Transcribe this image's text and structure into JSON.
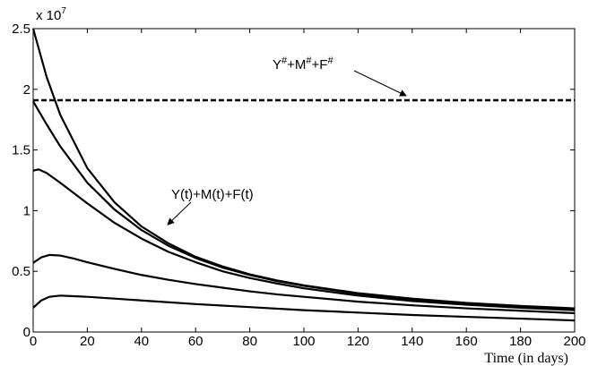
{
  "chart_data": {
    "type": "line",
    "title": "",
    "xlabel": "Time (in days)",
    "ylabel": "",
    "xlim": [
      0,
      200
    ],
    "ylim": [
      0,
      25000000
    ],
    "y_multiplier_label": "x 10",
    "y_multiplier_exponent": "7",
    "grid": false,
    "xticks": [
      0,
      20,
      40,
      60,
      80,
      100,
      120,
      140,
      160,
      180,
      200
    ],
    "xtick_labels": [
      "0",
      "20",
      "40",
      "60",
      "80",
      "100",
      "120",
      "140",
      "160",
      "180",
      "200"
    ],
    "yticks": [
      0,
      5000000,
      10000000,
      15000000,
      20000000,
      25000000
    ],
    "ytick_labels": [
      "0",
      "0.5",
      "1",
      "1.5",
      "2",
      "2.5"
    ],
    "equilibrium": {
      "value": 19100000,
      "style": "dashed",
      "label_parts": [
        "Y",
        "#",
        "+M",
        "#",
        "+F",
        "#"
      ]
    },
    "trajectories_label": "Y(t)+M(t)+F(t)",
    "series": [
      {
        "x": [
          0,
          5,
          10,
          20,
          30,
          40,
          50,
          60,
          70,
          80,
          90,
          100,
          120,
          140,
          160,
          180,
          200
        ],
        "values": [
          25000000,
          21000000,
          17900000,
          13500000,
          10700000,
          8700000,
          7300000,
          6200000,
          5400000,
          4750000,
          4250000,
          3850000,
          3200000,
          2750000,
          2400000,
          2150000,
          1950000
        ]
      },
      {
        "x": [
          0,
          5,
          10,
          20,
          30,
          40,
          50,
          60,
          70,
          80,
          90,
          100,
          120,
          140,
          160,
          180,
          200
        ],
        "values": [
          19000000,
          17100000,
          15300000,
          12300000,
          10100000,
          8400000,
          7100000,
          6100000,
          5300000,
          4700000,
          4200000,
          3800000,
          3150000,
          2700000,
          2350000,
          2100000,
          1900000
        ]
      },
      {
        "x": [
          0,
          2,
          5,
          10,
          20,
          30,
          40,
          50,
          60,
          70,
          80,
          90,
          100,
          120,
          140,
          160,
          180,
          200
        ],
        "values": [
          13300000,
          13400000,
          13100000,
          12300000,
          10600000,
          9000000,
          7700000,
          6600000,
          5750000,
          5000000,
          4450000,
          4000000,
          3600000,
          3000000,
          2550000,
          2250000,
          2000000,
          1800000
        ]
      },
      {
        "x": [
          0,
          3,
          6,
          10,
          15,
          20,
          30,
          40,
          50,
          60,
          70,
          80,
          90,
          100,
          120,
          140,
          160,
          180,
          200
        ],
        "values": [
          5700000,
          6150000,
          6350000,
          6300000,
          6050000,
          5750000,
          5200000,
          4700000,
          4300000,
          3950000,
          3650000,
          3350000,
          3100000,
          2900000,
          2500000,
          2200000,
          1950000,
          1750000,
          1550000
        ]
      },
      {
        "x": [
          0,
          3,
          6,
          10,
          15,
          20,
          30,
          40,
          60,
          80,
          100,
          120,
          140,
          160,
          180,
          200
        ],
        "values": [
          2000000,
          2600000,
          2900000,
          3000000,
          2950000,
          2900000,
          2750000,
          2600000,
          2300000,
          2050000,
          1800000,
          1600000,
          1400000,
          1250000,
          1100000,
          950000
        ]
      }
    ]
  }
}
